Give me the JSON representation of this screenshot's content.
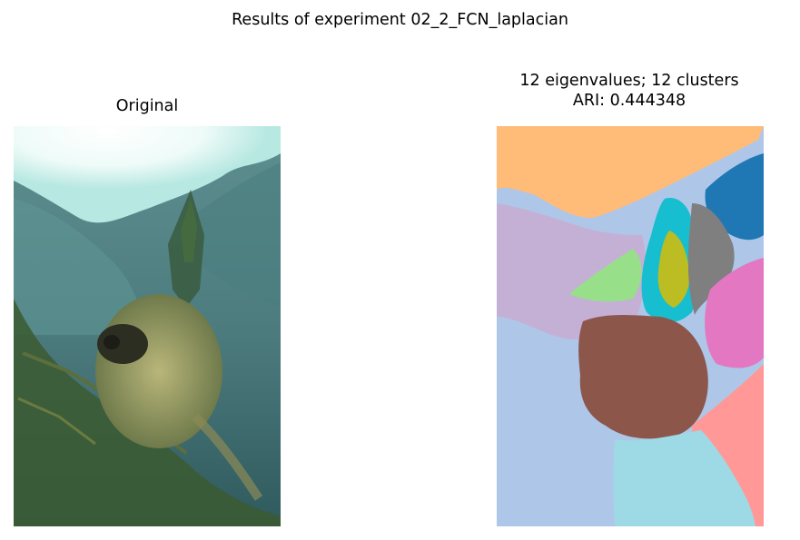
{
  "suptitle": "Results of experiment 02_2_FCN_laplacian",
  "left_panel": {
    "title": "Original"
  },
  "right_panel": {
    "title_line1": "12 eigenvalues; 12 clusters",
    "title_line2": "ARI: 0.444348"
  },
  "cluster_colors": [
    "#ffbb78",
    "#1f77b4",
    "#aec7e8",
    "#c5b0d5",
    "#98df8a",
    "#17becf",
    "#bcbd22",
    "#7f7f7f",
    "#e377c2",
    "#8c564b",
    "#ff9896",
    "#9edae5"
  ]
}
